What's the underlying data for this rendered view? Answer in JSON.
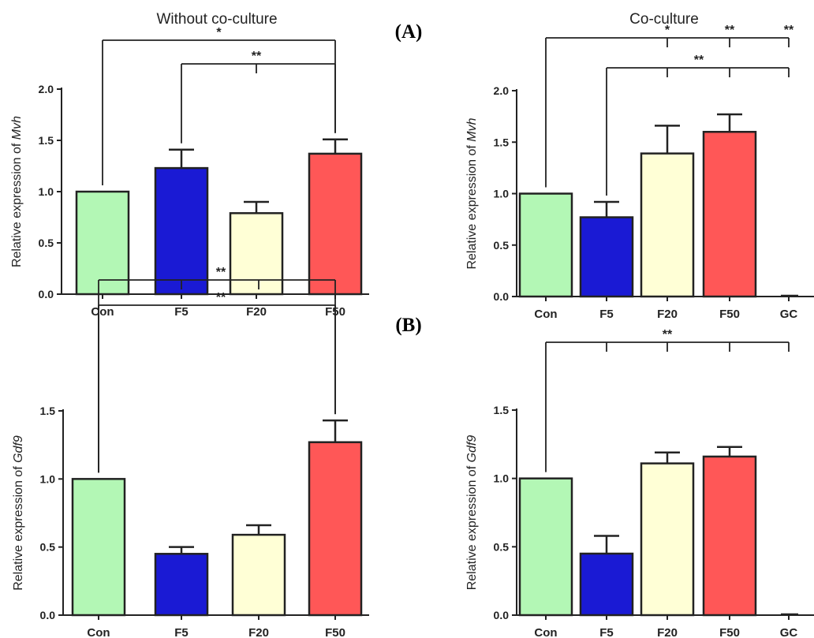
{
  "panel_labels": {
    "a": "(A)",
    "b": "(B)"
  },
  "column_titles": {
    "left": "Without co-culture",
    "right": "Co-culture"
  },
  "colors": {
    "Con": "#b3f7b5",
    "F5": "#1a1ad4",
    "F20": "#ffffd6",
    "F50": "#ff5757",
    "GC": "#ffffff"
  },
  "chart_data": [
    {
      "id": "A-left",
      "type": "bar",
      "title": "Without co-culture",
      "ylabel": {
        "prefix": "Relative expression of ",
        "gene": "Mvh"
      },
      "categories": [
        "Con",
        "F5",
        "F20",
        "F50"
      ],
      "values": [
        1.0,
        1.23,
        0.79,
        1.37
      ],
      "errors": [
        0,
        0.18,
        0.11,
        0.14
      ],
      "ylim": [
        0,
        2.0
      ],
      "yticks": [
        "0.0",
        "0.5",
        "1.0",
        "1.5",
        "2.0"
      ],
      "significance": [
        {
          "label": "*",
          "from": "Con",
          "to": [
            "F50"
          ]
        },
        {
          "label": "**",
          "from": "F5",
          "to": [
            "F20",
            "F50"
          ]
        }
      ]
    },
    {
      "id": "A-right",
      "type": "bar",
      "title": "Co-culture",
      "ylabel": {
        "prefix": "Relative expression of ",
        "gene": "Mvh"
      },
      "categories": [
        "Con",
        "F5",
        "F20",
        "F50",
        "GC"
      ],
      "values": [
        1.0,
        0.77,
        1.39,
        1.6,
        0.0
      ],
      "errors": [
        0,
        0.15,
        0.27,
        0.17,
        0
      ],
      "ylim": [
        0,
        2.0
      ],
      "yticks": [
        "0.0",
        "0.5",
        "1.0",
        "1.5",
        "2.0"
      ],
      "significance": [
        {
          "label": "",
          "from": "Con",
          "to": [
            "F20",
            "F50",
            "GC"
          ],
          "labels": [
            "*",
            "**",
            "**"
          ]
        },
        {
          "label": "**",
          "from": "F5",
          "to": [
            "F20",
            "F50",
            "GC"
          ]
        }
      ]
    },
    {
      "id": "B-left",
      "type": "bar",
      "ylabel": {
        "prefix": "Relative expression of ",
        "gene": "Gdf9"
      },
      "categories": [
        "Con",
        "F5",
        "F20",
        "F50"
      ],
      "values": [
        1.0,
        0.45,
        0.59,
        1.27
      ],
      "errors": [
        0,
        0.05,
        0.07,
        0.16
      ],
      "ylim": [
        0,
        1.5
      ],
      "yticks": [
        "0.0",
        "0.5",
        "1.0",
        "1.5"
      ],
      "significance": [
        {
          "label": "**",
          "from": "Con",
          "to": [
            "F5",
            "F20",
            "F50"
          ]
        },
        {
          "label": "**",
          "from": "Con",
          "to": [
            "F50"
          ]
        }
      ]
    },
    {
      "id": "B-right",
      "type": "bar",
      "ylabel": {
        "prefix": "Relative expression of ",
        "gene": "Gdf9"
      },
      "categories": [
        "Con",
        "F5",
        "F20",
        "F50",
        "GC"
      ],
      "values": [
        1.0,
        0.45,
        1.11,
        1.16,
        0.0
      ],
      "errors": [
        0,
        0.13,
        0.08,
        0.07,
        0
      ],
      "ylim": [
        0,
        1.5
      ],
      "yticks": [
        "0.0",
        "0.5",
        "1.0",
        "1.5"
      ],
      "significance": [
        {
          "label": "**",
          "from": "Con",
          "to": [
            "F5",
            "F20",
            "F50",
            "GC"
          ]
        }
      ]
    }
  ]
}
